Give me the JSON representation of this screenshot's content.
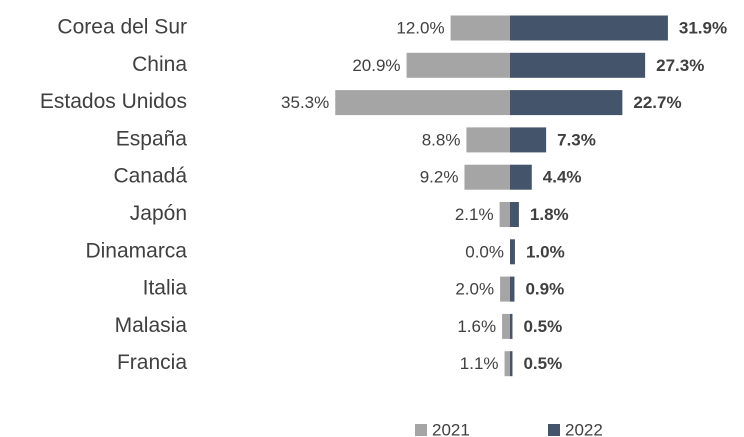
{
  "chart_data": {
    "type": "diverging_bar",
    "categories": [
      "Corea del Sur",
      "China",
      "Estados Unidos",
      "España",
      "Canadá",
      "Japón",
      "Dinamarca",
      "Italia",
      "Malasia",
      "Francia"
    ],
    "series": [
      {
        "name": "2021",
        "color": "#a5a5a5",
        "side": "left",
        "values": [
          12.0,
          20.9,
          35.3,
          8.8,
          9.2,
          2.1,
          0.0,
          2.0,
          1.6,
          1.1
        ],
        "value_labels": [
          "12.0%",
          "20.9%",
          "35.3%",
          "8.8%",
          "9.2%",
          "2.1%",
          "0.0%",
          "2.0%",
          "1.6%",
          "1.1%"
        ]
      },
      {
        "name": "2022",
        "color": "#44546a",
        "side": "right",
        "values": [
          31.9,
          27.3,
          22.7,
          7.3,
          4.4,
          1.8,
          1.0,
          0.9,
          0.5,
          0.5
        ],
        "value_labels": [
          "31.9%",
          "27.3%",
          "22.7%",
          "7.3%",
          "4.4%",
          "1.8%",
          "1.0%",
          "0.9%",
          "0.5%",
          "0.5%"
        ]
      }
    ],
    "legend": "bottom"
  }
}
